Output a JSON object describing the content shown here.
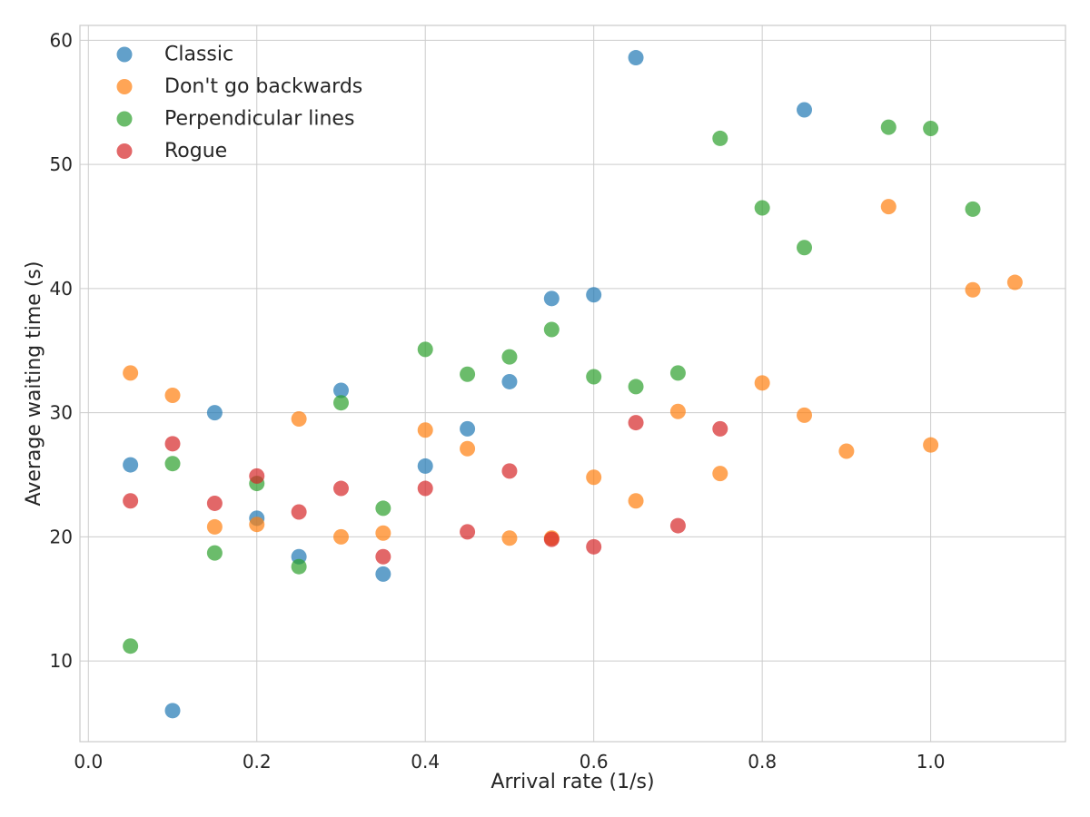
{
  "chart_data": {
    "type": "scatter",
    "title": "",
    "xlabel": "Arrival rate (1/s)",
    "ylabel": "Average waiting time (s)",
    "xlim": [
      -0.01,
      1.16
    ],
    "ylim": [
      3.5,
      61.2
    ],
    "xticks": [
      0.0,
      0.2,
      0.4,
      0.6,
      0.8,
      1.0
    ],
    "xtick_labels": [
      "0.0",
      "0.2",
      "0.4",
      "0.6",
      "0.8",
      "1.0"
    ],
    "yticks": [
      10,
      20,
      30,
      40,
      50,
      60
    ],
    "ytick_labels": [
      "10",
      "20",
      "30",
      "40",
      "50",
      "60"
    ],
    "grid": true,
    "legend_position": "top-left",
    "series": [
      {
        "name": "Classic",
        "color": "#1f77b4",
        "points": [
          [
            0.05,
            25.8
          ],
          [
            0.1,
            6.0
          ],
          [
            0.15,
            30.0
          ],
          [
            0.2,
            21.5
          ],
          [
            0.25,
            18.4
          ],
          [
            0.3,
            31.8
          ],
          [
            0.35,
            17.0
          ],
          [
            0.4,
            25.7
          ],
          [
            0.45,
            28.7
          ],
          [
            0.5,
            32.5
          ],
          [
            0.55,
            39.2
          ],
          [
            0.6,
            39.5
          ],
          [
            0.65,
            58.6
          ],
          [
            0.85,
            54.4
          ]
        ]
      },
      {
        "name": "Don't go backwards",
        "color": "#ff7f0e",
        "points": [
          [
            0.05,
            33.2
          ],
          [
            0.1,
            31.4
          ],
          [
            0.15,
            20.8
          ],
          [
            0.2,
            21.0
          ],
          [
            0.25,
            29.5
          ],
          [
            0.3,
            20.0
          ],
          [
            0.35,
            20.3
          ],
          [
            0.4,
            28.6
          ],
          [
            0.45,
            27.1
          ],
          [
            0.5,
            19.9
          ],
          [
            0.55,
            19.9
          ],
          [
            0.6,
            24.8
          ],
          [
            0.65,
            22.9
          ],
          [
            0.7,
            30.1
          ],
          [
            0.75,
            25.1
          ],
          [
            0.8,
            32.4
          ],
          [
            0.85,
            29.8
          ],
          [
            0.9,
            26.9
          ],
          [
            0.95,
            46.6
          ],
          [
            1.0,
            27.4
          ],
          [
            1.05,
            39.9
          ],
          [
            1.1,
            40.5
          ]
        ]
      },
      {
        "name": "Perpendicular lines",
        "color": "#2ca02c",
        "points": [
          [
            0.05,
            11.2
          ],
          [
            0.1,
            25.9
          ],
          [
            0.15,
            18.7
          ],
          [
            0.2,
            24.3
          ],
          [
            0.25,
            17.6
          ],
          [
            0.3,
            30.8
          ],
          [
            0.35,
            22.3
          ],
          [
            0.4,
            35.1
          ],
          [
            0.45,
            33.1
          ],
          [
            0.5,
            34.5
          ],
          [
            0.55,
            36.7
          ],
          [
            0.6,
            32.9
          ],
          [
            0.65,
            32.1
          ],
          [
            0.7,
            33.2
          ],
          [
            0.75,
            52.1
          ],
          [
            0.8,
            46.5
          ],
          [
            0.85,
            43.3
          ],
          [
            0.95,
            53.0
          ],
          [
            1.0,
            52.9
          ],
          [
            1.05,
            46.4
          ]
        ]
      },
      {
        "name": "Rogue",
        "color": "#d62728",
        "points": [
          [
            0.05,
            22.9
          ],
          [
            0.1,
            27.5
          ],
          [
            0.15,
            22.7
          ],
          [
            0.2,
            24.9
          ],
          [
            0.25,
            22.0
          ],
          [
            0.3,
            23.9
          ],
          [
            0.35,
            18.4
          ],
          [
            0.4,
            23.9
          ],
          [
            0.45,
            20.4
          ],
          [
            0.5,
            25.3
          ],
          [
            0.55,
            19.8
          ],
          [
            0.6,
            19.2
          ],
          [
            0.65,
            29.2
          ],
          [
            0.7,
            20.9
          ],
          [
            0.75,
            28.7
          ]
        ]
      }
    ]
  }
}
